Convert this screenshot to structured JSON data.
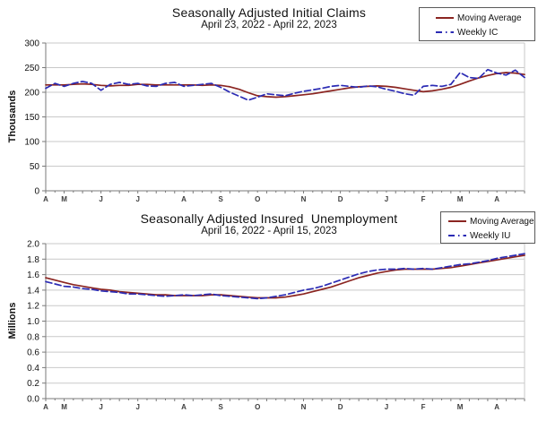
{
  "colors": {
    "moving_average": "#8B2521",
    "weekly": "#2B2BB4",
    "gridline": "#C9C9C9",
    "axis": "#7A7A7A",
    "tick_label": "#111111",
    "x_tick_label": "#3D3D3D",
    "legend_border": "#595959",
    "background": "#FFFFFF"
  },
  "chart_data": [
    {
      "type": "line",
      "title": "Seasonally Adjusted Initial Claims",
      "subtitle": "April 23, 2022 - April 22, 2023",
      "ylabel": "Thousands",
      "ylim": [
        0,
        300
      ],
      "y_step": 50,
      "y_decimals": 0,
      "grid": true,
      "legend_position": "top-right",
      "x_tick_labels": [
        "A",
        "M",
        "J",
        "J",
        "A",
        "S",
        "O",
        "N",
        "D",
        "J",
        "F",
        "M",
        "A"
      ],
      "x_tick_weeks": [
        0,
        2,
        6,
        10,
        15,
        19,
        23,
        28,
        32,
        37,
        41,
        45,
        49
      ],
      "n_points": 53,
      "series": [
        {
          "name": "Moving Average",
          "style": "solid",
          "color": "#8B2521",
          "values": [
            215,
            215,
            215,
            216,
            217,
            216,
            214,
            213,
            214,
            214,
            216,
            216,
            215,
            215,
            215,
            215,
            215,
            214,
            215,
            214,
            211,
            206,
            199,
            193,
            191,
            190,
            191,
            193,
            195,
            197,
            200,
            203,
            206,
            209,
            211,
            212,
            213,
            212,
            210,
            207,
            204,
            201,
            203,
            206,
            210,
            216,
            223,
            229,
            234,
            238,
            240,
            239,
            236
          ]
        },
        {
          "name": "Weekly IC",
          "style": "dashed",
          "color": "#2B2BB4",
          "values": [
            208,
            218,
            212,
            218,
            222,
            218,
            204,
            216,
            220,
            216,
            218,
            213,
            212,
            218,
            220,
            212,
            214,
            216,
            218,
            210,
            200,
            192,
            184,
            190,
            197,
            195,
            193,
            198,
            202,
            205,
            208,
            212,
            214,
            212,
            210,
            213,
            211,
            206,
            202,
            197,
            194,
            212,
            214,
            212,
            216,
            240,
            230,
            228,
            246,
            239,
            235,
            245,
            230
          ]
        }
      ]
    },
    {
      "type": "line",
      "title": "Seasonally Adjusted Insured  Unemployment",
      "subtitle": "April 16, 2022 - April 15, 2023",
      "ylabel": "Millions",
      "ylim": [
        0.0,
        2.0
      ],
      "y_step": 0.2,
      "y_decimals": 1,
      "grid": true,
      "legend_position": "top-right",
      "x_tick_labels": [
        "A",
        "M",
        "J",
        "J",
        "A",
        "S",
        "O",
        "N",
        "D",
        "J",
        "F",
        "M",
        "A"
      ],
      "x_tick_weeks": [
        0,
        2,
        6,
        10,
        15,
        19,
        23,
        28,
        32,
        37,
        41,
        45,
        49
      ],
      "n_points": 53,
      "series": [
        {
          "name": "Moving Average",
          "style": "solid",
          "color": "#8B2521",
          "values": [
            1.56,
            1.53,
            1.5,
            1.47,
            1.45,
            1.43,
            1.41,
            1.4,
            1.38,
            1.37,
            1.36,
            1.35,
            1.34,
            1.34,
            1.33,
            1.33,
            1.33,
            1.33,
            1.34,
            1.34,
            1.33,
            1.32,
            1.31,
            1.3,
            1.3,
            1.3,
            1.31,
            1.33,
            1.35,
            1.38,
            1.41,
            1.44,
            1.48,
            1.52,
            1.56,
            1.59,
            1.62,
            1.64,
            1.66,
            1.67,
            1.67,
            1.67,
            1.67,
            1.68,
            1.69,
            1.71,
            1.73,
            1.75,
            1.77,
            1.79,
            1.81,
            1.83,
            1.85
          ]
        },
        {
          "name": "Weekly IU",
          "style": "dashed",
          "color": "#2B2BB4",
          "values": [
            1.51,
            1.48,
            1.45,
            1.44,
            1.42,
            1.41,
            1.39,
            1.38,
            1.37,
            1.35,
            1.35,
            1.34,
            1.33,
            1.32,
            1.33,
            1.34,
            1.33,
            1.34,
            1.35,
            1.33,
            1.32,
            1.31,
            1.3,
            1.29,
            1.3,
            1.32,
            1.34,
            1.37,
            1.4,
            1.42,
            1.45,
            1.49,
            1.53,
            1.57,
            1.61,
            1.64,
            1.66,
            1.67,
            1.67,
            1.68,
            1.67,
            1.68,
            1.67,
            1.69,
            1.71,
            1.73,
            1.74,
            1.76,
            1.78,
            1.81,
            1.83,
            1.85,
            1.87
          ]
        }
      ]
    }
  ]
}
